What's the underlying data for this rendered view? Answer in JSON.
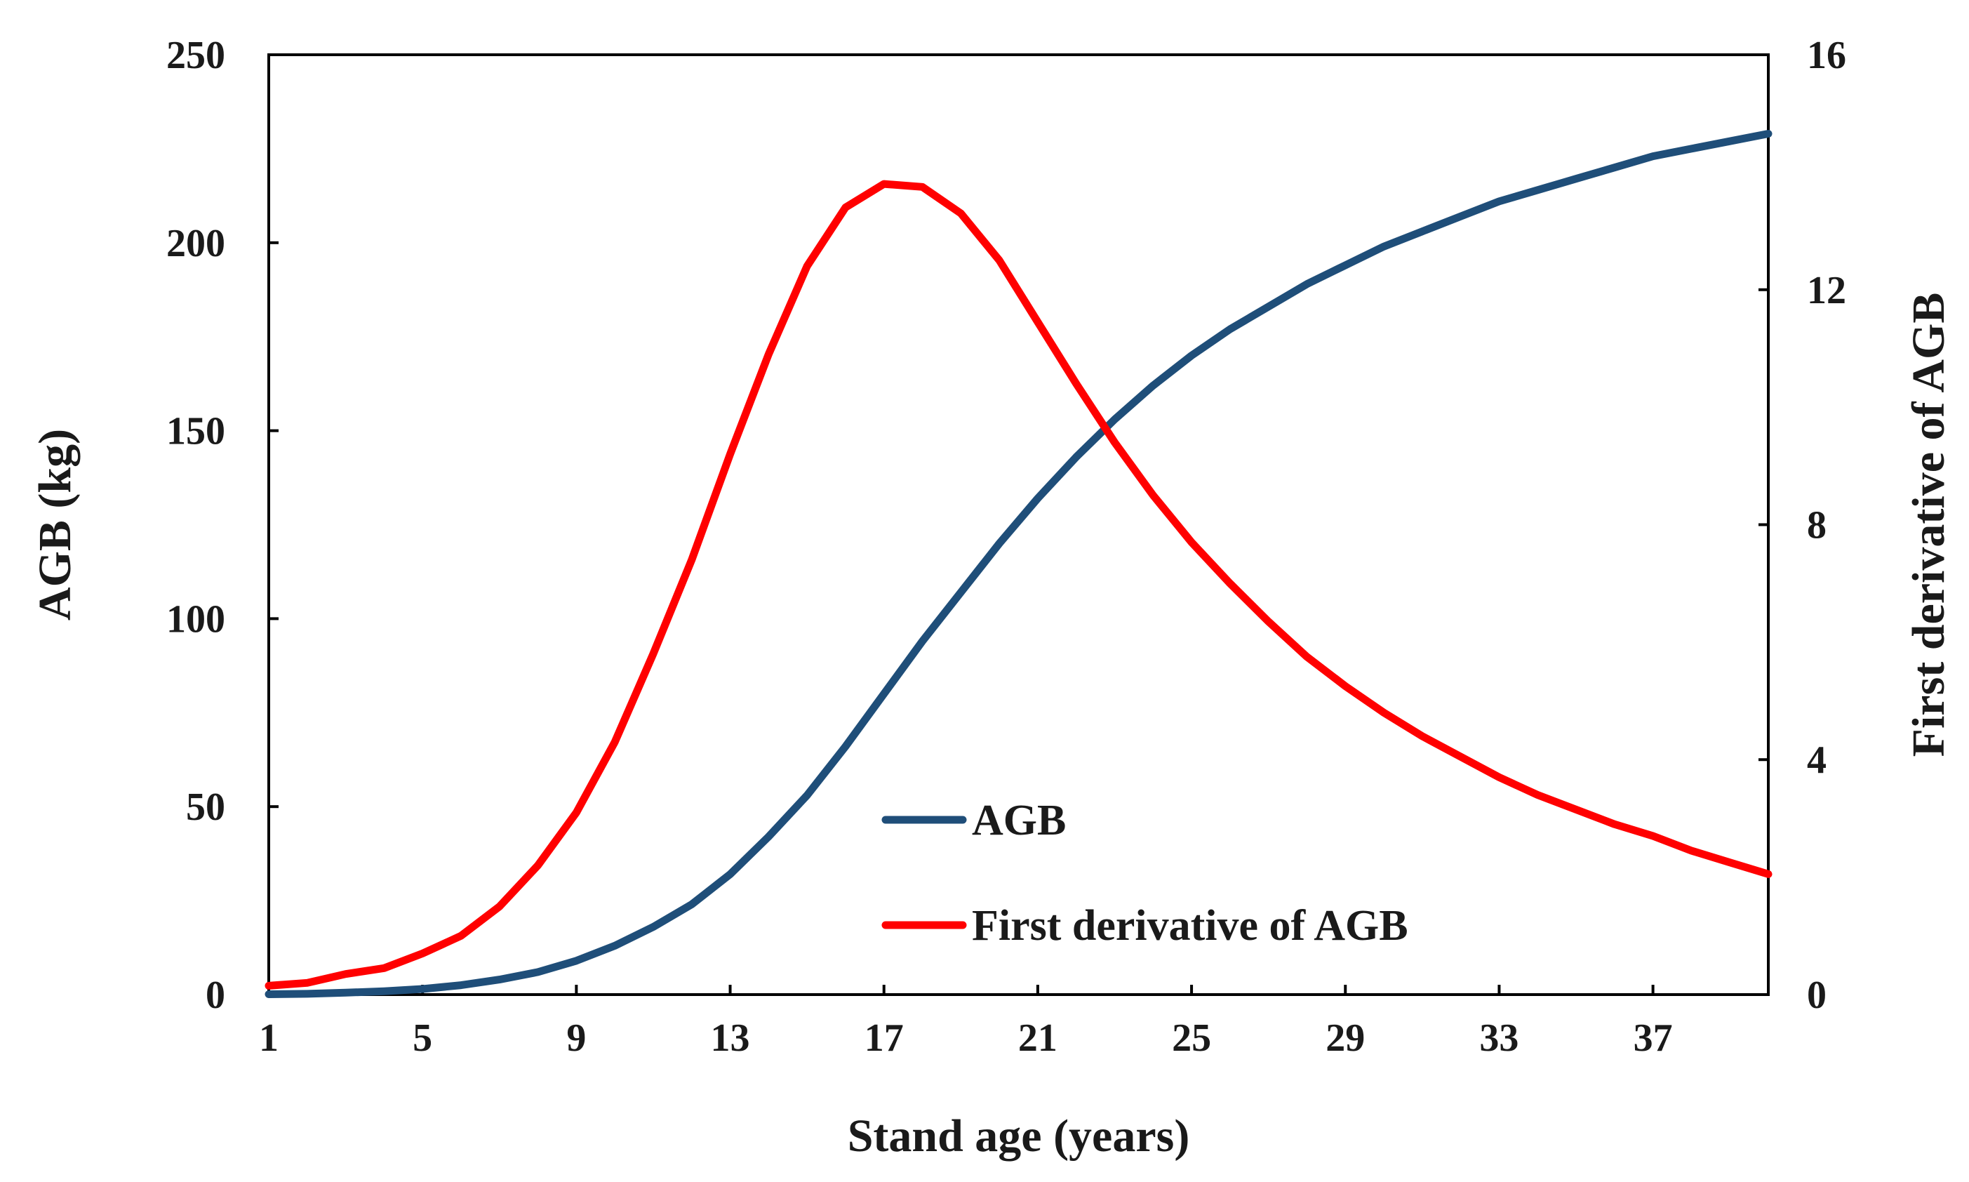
{
  "chart_data": {
    "type": "line",
    "title": "",
    "xlabel": "Stand age (years)",
    "ylabel": "AGB (kg)",
    "y2label": "First derivative of AGB",
    "xlim": [
      1,
      40
    ],
    "ylim": [
      0,
      250
    ],
    "y2lim": [
      0,
      16
    ],
    "x_ticks": [
      1,
      5,
      9,
      13,
      17,
      21,
      25,
      29,
      33,
      37
    ],
    "y_ticks": [
      0,
      50,
      100,
      150,
      200,
      250
    ],
    "y2_ticks": [
      0,
      4,
      8,
      12,
      16
    ],
    "grid": false,
    "legend_position": "lower-center",
    "x": [
      1,
      2,
      3,
      4,
      5,
      6,
      7,
      8,
      9,
      10,
      11,
      12,
      13,
      14,
      15,
      16,
      17,
      18,
      19,
      20,
      21,
      22,
      23,
      24,
      25,
      26,
      27,
      28,
      29,
      30,
      31,
      32,
      33,
      34,
      35,
      36,
      37,
      38,
      39,
      40
    ],
    "series": [
      {
        "name": "AGB",
        "axis": "left",
        "color": "#1f4e79",
        "values": [
          0.1,
          0.2,
          0.5,
          0.9,
          1.5,
          2.5,
          4,
          6,
          9,
          13,
          18,
          24,
          32,
          42,
          53,
          66,
          80,
          94,
          107,
          120,
          132,
          143,
          153,
          162,
          170,
          177,
          183,
          189,
          194,
          199,
          203,
          207,
          211,
          214,
          217,
          220,
          223,
          225,
          227,
          229
        ]
      },
      {
        "name": "First derivative of AGB",
        "axis": "right",
        "color": "#ff0000",
        "values": [
          0.15,
          0.2,
          0.35,
          0.45,
          0.7,
          1.0,
          1.5,
          2.2,
          3.1,
          4.3,
          5.8,
          7.4,
          9.2,
          10.9,
          12.4,
          13.4,
          13.8,
          13.75,
          13.3,
          12.5,
          11.45,
          10.4,
          9.4,
          8.5,
          7.7,
          7.0,
          6.35,
          5.75,
          5.25,
          4.8,
          4.4,
          4.05,
          3.7,
          3.4,
          3.15,
          2.9,
          2.7,
          2.45,
          2.25,
          2.05
        ]
      }
    ]
  }
}
